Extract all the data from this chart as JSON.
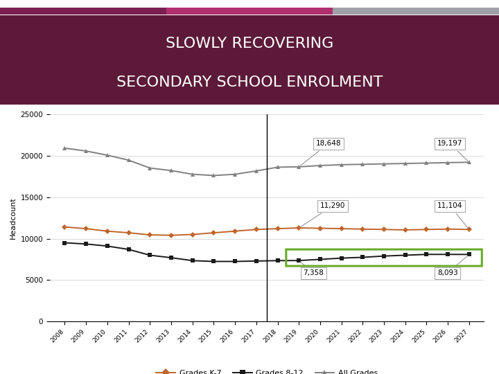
{
  "title_line1": "SLOWLY RECOVERING",
  "title_line2": "SECONDARY SCHOOL ENROLMENT",
  "title_bg_color": "#5c1a38",
  "title_text_color": "#ffffff",
  "header_bar_colors": [
    "#7b1e50",
    "#b0306e",
    "#a0a0a8"
  ],
  "years": [
    2008,
    2009,
    2010,
    2011,
    2012,
    2013,
    2014,
    2015,
    2016,
    2017,
    2018,
    2019,
    2020,
    2021,
    2022,
    2023,
    2024,
    2025,
    2026,
    2027
  ],
  "grades_k7": [
    11400,
    11200,
    10900,
    10700,
    10450,
    10400,
    10500,
    10700,
    10900,
    11100,
    11200,
    11290,
    11250,
    11200,
    11150,
    11100,
    11050,
    11100,
    11150,
    11104
  ],
  "grades_812": [
    9500,
    9350,
    9100,
    8700,
    8000,
    7700,
    7350,
    7250,
    7250,
    7300,
    7350,
    7358,
    7500,
    7650,
    7750,
    7900,
    8000,
    8100,
    8100,
    8093
  ],
  "all_grades": [
    20900,
    20550,
    20050,
    19450,
    18500,
    18200,
    17750,
    17600,
    17750,
    18150,
    18600,
    18648,
    18800,
    18900,
    18950,
    19000,
    19050,
    19100,
    19150,
    19197
  ],
  "grades_k7_color": "#c0652b",
  "grades_812_color": "#1a1a1a",
  "all_grades_color": "#808080",
  "vline_x": 2017.5,
  "ann_2019_all": "18,648",
  "ann_2027_all": "19,197",
  "ann_2019_k7": "11,290",
  "ann_2027_k7": "11,104",
  "ann_2019_812": "7,358",
  "ann_2027_812": "8,093",
  "green_box_color": "#6aaa2a",
  "ylabel": "Headcount",
  "ylim": [
    0,
    25000
  ],
  "yticks": [
    0,
    5000,
    10000,
    15000,
    20000,
    25000
  ],
  "bg_color": "#ffffff",
  "legend_labels": [
    "Grades K-7",
    "Grades 8-12",
    "All Grades"
  ]
}
